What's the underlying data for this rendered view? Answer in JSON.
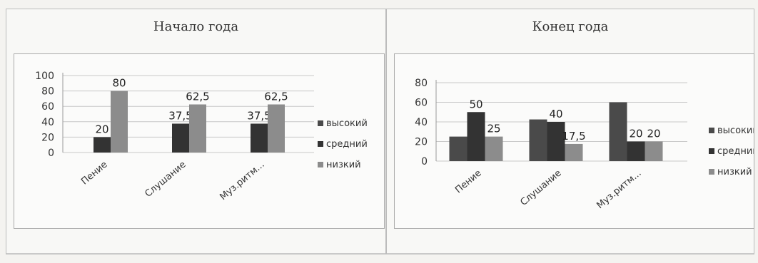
{
  "colors": {
    "high": "#4a4a4a",
    "medium": "#333333",
    "low": "#8c8c8c"
  },
  "chart_data": [
    {
      "type": "bar",
      "title": "Начало года",
      "categories": [
        "Пение",
        "Слушание",
        "Муз.ритм..."
      ],
      "ylim": [
        0,
        100
      ],
      "yticks": [
        "0",
        "20",
        "40",
        "60",
        "80",
        "100"
      ],
      "grid": true,
      "legend_position": "right",
      "series": [
        {
          "name": "высокий",
          "values": [
            0,
            0,
            0
          ],
          "labels": [
            "",
            "",
            ""
          ]
        },
        {
          "name": "средний",
          "values": [
            20,
            37.5,
            37.5
          ],
          "labels": [
            "20",
            "37,5",
            "37,5"
          ]
        },
        {
          "name": "низкий",
          "values": [
            80,
            62.5,
            62.5
          ],
          "labels": [
            "80",
            "62,5",
            "62,5"
          ]
        }
      ]
    },
    {
      "type": "bar",
      "title": "Конец года",
      "categories": [
        "Пение",
        "Слушание",
        "Муз.ритм..."
      ],
      "ylim": [
        0,
        80
      ],
      "yticks": [
        "0",
        "20",
        "40",
        "60",
        "80"
      ],
      "grid": true,
      "legend_position": "right",
      "series": [
        {
          "name": "высокий",
          "values": [
            25,
            42.5,
            60
          ],
          "labels": [
            "",
            "",
            ""
          ]
        },
        {
          "name": "средний",
          "values": [
            50,
            40,
            20
          ],
          "labels": [
            "50",
            "40",
            "20"
          ]
        },
        {
          "name": "низкий",
          "values": [
            25,
            17.5,
            20
          ],
          "labels": [
            "25",
            "17,5",
            "20"
          ]
        }
      ]
    }
  ]
}
